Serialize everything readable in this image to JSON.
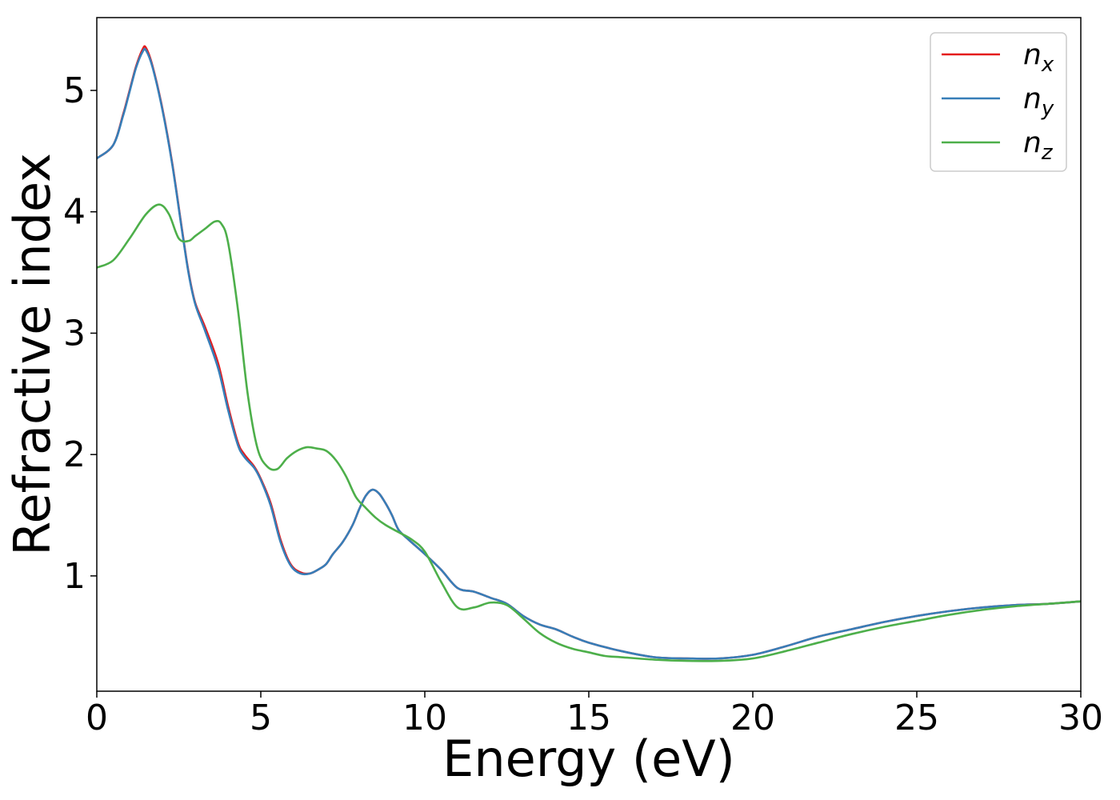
{
  "chart_data": {
    "type": "line",
    "xlabel": "Energy (eV)",
    "ylabel": "Refractive index",
    "xlim": [
      0,
      30
    ],
    "ylim": [
      0.05,
      5.6
    ],
    "xticks": [
      0,
      5,
      10,
      15,
      20,
      25,
      30
    ],
    "yticks": [
      1,
      2,
      3,
      4,
      5
    ],
    "grid": false,
    "legend_position": "top-right",
    "series": [
      {
        "name": "n_x",
        "legend_base": "n",
        "legend_sub": "x",
        "color": "#e41a1c",
        "x": [
          0,
          0.5,
          0.8,
          1.0,
          1.2,
          1.4,
          1.5,
          1.7,
          2.0,
          2.3,
          2.6,
          2.8,
          3.0,
          3.3,
          3.7,
          4.0,
          4.3,
          4.5,
          4.8,
          5.0,
          5.3,
          5.6,
          5.9,
          6.2,
          6.5,
          6.8,
          7.0,
          7.2,
          7.5,
          7.8,
          8.0,
          8.2,
          8.4,
          8.6,
          8.8,
          9.0,
          9.2,
          9.5,
          10.0,
          10.5,
          11.0,
          11.5,
          12.0,
          12.5,
          13.0,
          13.5,
          14.0,
          14.5,
          15.0,
          16.0,
          17.0,
          18.0,
          19.0,
          20.0,
          21.0,
          22.0,
          23.0,
          24.0,
          25.0,
          26.0,
          27.0,
          28.0,
          29.0,
          30.0
        ],
        "values": [
          4.44,
          4.55,
          4.8,
          5.0,
          5.2,
          5.34,
          5.35,
          5.2,
          4.85,
          4.4,
          3.85,
          3.5,
          3.25,
          3.05,
          2.75,
          2.4,
          2.1,
          2.0,
          1.9,
          1.8,
          1.6,
          1.3,
          1.1,
          1.03,
          1.02,
          1.06,
          1.1,
          1.18,
          1.28,
          1.42,
          1.55,
          1.66,
          1.71,
          1.68,
          1.6,
          1.5,
          1.38,
          1.3,
          1.18,
          1.05,
          0.9,
          0.87,
          0.82,
          0.77,
          0.67,
          0.6,
          0.56,
          0.5,
          0.45,
          0.38,
          0.33,
          0.32,
          0.32,
          0.35,
          0.42,
          0.5,
          0.56,
          0.62,
          0.67,
          0.71,
          0.74,
          0.76,
          0.77,
          0.79
        ]
      },
      {
        "name": "n_y",
        "legend_base": "n",
        "legend_sub": "y",
        "color": "#377eb8",
        "x": [
          0,
          0.5,
          0.8,
          1.0,
          1.2,
          1.4,
          1.5,
          1.7,
          2.0,
          2.3,
          2.6,
          2.8,
          3.0,
          3.3,
          3.7,
          4.0,
          4.3,
          4.5,
          4.8,
          5.0,
          5.3,
          5.6,
          5.9,
          6.2,
          6.5,
          6.8,
          7.0,
          7.2,
          7.5,
          7.8,
          8.0,
          8.2,
          8.4,
          8.6,
          8.8,
          9.0,
          9.2,
          9.5,
          10.0,
          10.5,
          11.0,
          11.5,
          12.0,
          12.5,
          13.0,
          13.5,
          14.0,
          14.5,
          15.0,
          16.0,
          17.0,
          18.0,
          19.0,
          20.0,
          21.0,
          22.0,
          23.0,
          24.0,
          25.0,
          26.0,
          27.0,
          28.0,
          29.0,
          30.0
        ],
        "values": [
          4.44,
          4.55,
          4.79,
          4.99,
          5.19,
          5.32,
          5.33,
          5.19,
          4.84,
          4.39,
          3.84,
          3.49,
          3.24,
          3.02,
          2.71,
          2.37,
          2.08,
          1.98,
          1.89,
          1.79,
          1.58,
          1.28,
          1.09,
          1.02,
          1.02,
          1.06,
          1.1,
          1.18,
          1.28,
          1.42,
          1.55,
          1.66,
          1.71,
          1.68,
          1.6,
          1.5,
          1.38,
          1.3,
          1.18,
          1.05,
          0.9,
          0.87,
          0.82,
          0.77,
          0.67,
          0.6,
          0.56,
          0.5,
          0.45,
          0.38,
          0.33,
          0.32,
          0.32,
          0.35,
          0.42,
          0.5,
          0.56,
          0.62,
          0.67,
          0.71,
          0.74,
          0.76,
          0.77,
          0.79
        ]
      },
      {
        "name": "n_z",
        "legend_base": "n",
        "legend_sub": "z",
        "color": "#4daf4a",
        "x": [
          0,
          0.5,
          1.0,
          1.5,
          1.9,
          2.2,
          2.5,
          2.8,
          3.0,
          3.3,
          3.6,
          3.8,
          4.0,
          4.3,
          4.6,
          4.9,
          5.2,
          5.5,
          5.8,
          6.1,
          6.4,
          6.7,
          7.0,
          7.3,
          7.6,
          7.9,
          8.2,
          8.5,
          8.8,
          9.2,
          9.6,
          10.0,
          10.5,
          11.0,
          11.5,
          12.0,
          12.5,
          13.0,
          13.5,
          14.0,
          14.5,
          15.0,
          15.5,
          16.0,
          17.0,
          18.0,
          19.0,
          20.0,
          21.0,
          22.0,
          23.0,
          24.0,
          25.0,
          26.0,
          27.0,
          28.0,
          29.0,
          30.0
        ],
        "values": [
          3.54,
          3.6,
          3.78,
          3.98,
          4.06,
          3.98,
          3.78,
          3.76,
          3.8,
          3.86,
          3.92,
          3.9,
          3.75,
          3.2,
          2.5,
          2.05,
          1.9,
          1.88,
          1.97,
          2.03,
          2.06,
          2.05,
          2.03,
          1.95,
          1.82,
          1.65,
          1.56,
          1.48,
          1.42,
          1.36,
          1.3,
          1.2,
          0.95,
          0.74,
          0.74,
          0.78,
          0.76,
          0.65,
          0.53,
          0.45,
          0.4,
          0.37,
          0.34,
          0.33,
          0.31,
          0.3,
          0.3,
          0.32,
          0.38,
          0.45,
          0.52,
          0.58,
          0.63,
          0.68,
          0.72,
          0.75,
          0.77,
          0.79
        ]
      }
    ]
  }
}
